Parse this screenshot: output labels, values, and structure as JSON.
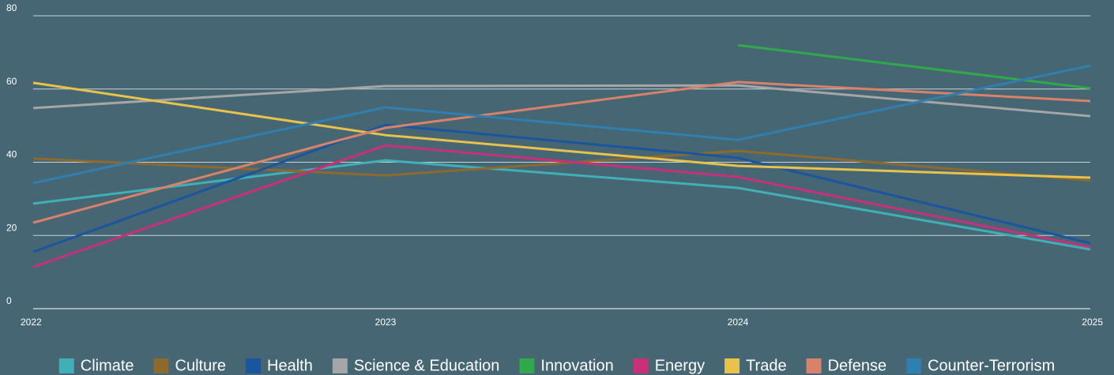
{
  "chart_data": {
    "type": "line",
    "categories": [
      "2022",
      "2023",
      "2024",
      "2025"
    ],
    "series": [
      {
        "name": "Climate",
        "color": "#3fb0b8",
        "values": [
          28.7,
          40.5,
          33,
          16.2
        ]
      },
      {
        "name": "Culture",
        "color": "#8c6a2e",
        "values": [
          41,
          36.4,
          43.1,
          35
        ]
      },
      {
        "name": "Health",
        "color": "#1a56a0",
        "values": [
          15.5,
          50.2,
          41.2,
          17.9
        ]
      },
      {
        "name": "Science & Education",
        "color": "#a6a6a6",
        "values": [
          54.8,
          60.8,
          61,
          52.6
        ]
      },
      {
        "name": "Innovation",
        "color": "#2eaa4a",
        "values": [
          null,
          null,
          72,
          60.2
        ]
      },
      {
        "name": "Energy",
        "color": "#c8307a",
        "values": [
          11.4,
          44.6,
          36,
          16.8
        ]
      },
      {
        "name": "Trade",
        "color": "#e8c24a",
        "values": [
          61.7,
          47.4,
          39,
          35.8
        ]
      },
      {
        "name": "Defense",
        "color": "#d9826a",
        "values": [
          23.5,
          49.4,
          61.9,
          56.7
        ]
      },
      {
        "name": "Counter-Terrorism",
        "color": "#2f7fb0",
        "values": [
          34.3,
          55,
          46.1,
          66.4
        ]
      }
    ],
    "ylim": [
      0,
      80
    ],
    "yticks": [
      0,
      20,
      40,
      60,
      80
    ],
    "grid": true,
    "legend": "bottom"
  }
}
